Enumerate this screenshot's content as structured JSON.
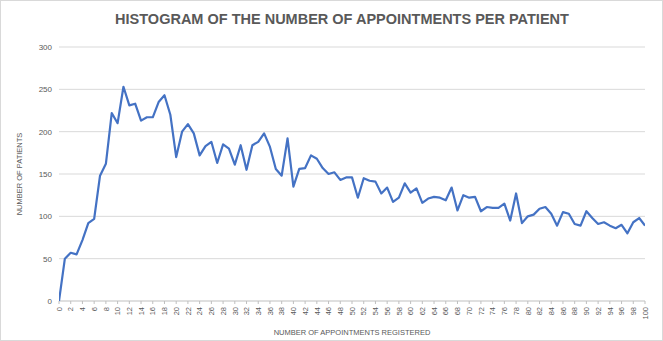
{
  "chart_data": {
    "type": "line",
    "title": "HISTOGRAM OF THE NUMBER OF APPOINTMENTS PER PATIENT",
    "x_label": "NUMBER OF APPOINTMENTS REGISTERED",
    "y_label": "NUMBER OF PATIENTS",
    "x": [
      0,
      1,
      2,
      3,
      4,
      5,
      6,
      7,
      8,
      9,
      10,
      11,
      12,
      13,
      14,
      15,
      16,
      17,
      18,
      19,
      20,
      21,
      22,
      23,
      24,
      25,
      26,
      27,
      28,
      29,
      30,
      31,
      32,
      33,
      34,
      35,
      36,
      37,
      38,
      39,
      40,
      41,
      42,
      43,
      44,
      45,
      46,
      47,
      48,
      49,
      50,
      51,
      52,
      53,
      54,
      55,
      56,
      57,
      58,
      59,
      60,
      61,
      62,
      63,
      64,
      65,
      66,
      67,
      68,
      69,
      70,
      71,
      72,
      73,
      74,
      75,
      76,
      77,
      78,
      79,
      80,
      81,
      82,
      83,
      84,
      85,
      86,
      87,
      88,
      89,
      90,
      91,
      92,
      93,
      94,
      95,
      96,
      97,
      98,
      99,
      100
    ],
    "values": [
      0,
      50,
      57,
      55,
      72,
      92,
      97,
      148,
      162,
      222,
      210,
      253,
      231,
      233,
      213,
      217,
      217,
      235,
      243,
      220,
      170,
      200,
      209,
      198,
      172,
      183,
      188,
      163,
      185,
      180,
      161,
      184,
      155,
      184,
      188,
      198,
      182,
      156,
      148,
      192,
      135,
      156,
      157,
      172,
      168,
      157,
      150,
      152,
      143,
      146,
      146,
      122,
      145,
      142,
      141,
      127,
      134,
      117,
      122,
      139,
      128,
      133,
      116,
      121,
      123,
      122,
      119,
      134,
      107,
      125,
      122,
      123,
      106,
      111,
      110,
      110,
      115,
      95,
      127,
      92,
      100,
      102,
      109,
      111,
      103,
      89,
      105,
      103,
      91,
      89,
      106,
      98,
      91,
      93,
      89,
      86,
      90,
      80,
      93,
      98,
      89
    ],
    "color": "#4472c4",
    "xlim": [
      0,
      100
    ],
    "xticks": [
      0,
      2,
      4,
      6,
      8,
      10,
      12,
      14,
      16,
      18,
      20,
      22,
      24,
      26,
      28,
      30,
      32,
      34,
      36,
      38,
      40,
      42,
      44,
      46,
      48,
      50,
      52,
      54,
      56,
      58,
      60,
      62,
      64,
      66,
      68,
      70,
      72,
      74,
      76,
      78,
      80,
      82,
      84,
      86,
      88,
      90,
      92,
      94,
      96,
      98,
      100
    ],
    "ylim": [
      0,
      300
    ],
    "yticks": [
      0,
      50,
      100,
      150,
      200,
      250,
      300
    ],
    "grid": true
  }
}
